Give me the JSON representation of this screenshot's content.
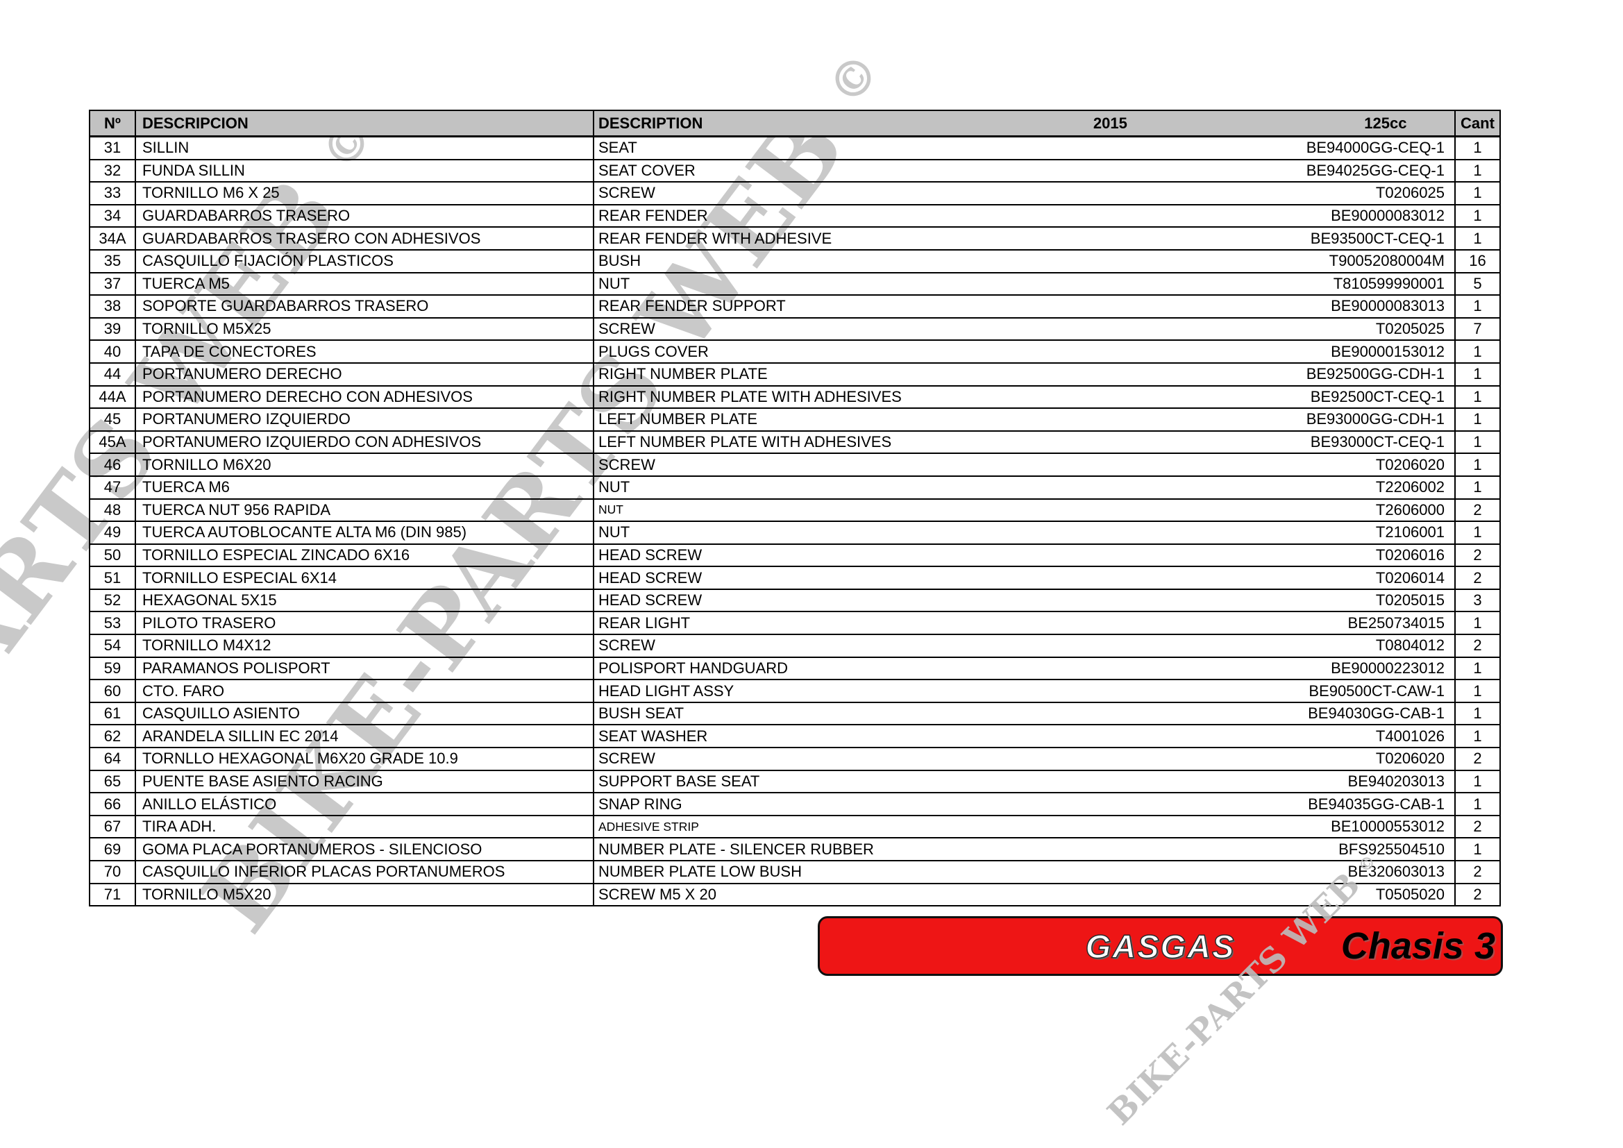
{
  "header": {
    "col_num": "Nº",
    "col_desc_es": "DESCRIPCION",
    "col_desc_en": "DESCRIPTION",
    "col_year": "2015",
    "col_model": "125cc",
    "col_qty": "Cant"
  },
  "rows": [
    {
      "num": "31",
      "desc_es": "SILLIN",
      "desc_en": "SEAT",
      "part": "BE94000GG-CEQ-1",
      "qty": "1"
    },
    {
      "num": "32",
      "desc_es": "FUNDA SILLIN",
      "desc_en": "SEAT COVER",
      "part": "BE94025GG-CEQ-1",
      "qty": "1"
    },
    {
      "num": "33",
      "desc_es": "TORNILLO M6 X 25",
      "desc_en": "SCREW",
      "part": "T0206025",
      "qty": "1"
    },
    {
      "num": "34",
      "desc_es": "GUARDABARROS TRASERO",
      "desc_en": "REAR FENDER",
      "part": "BE90000083012",
      "qty": "1"
    },
    {
      "num": "34A",
      "desc_es": "GUARDABARROS TRASERO CON ADHESIVOS",
      "desc_en": "REAR FENDER WITH ADHESIVE",
      "part": "BE93500CT-CEQ-1",
      "qty": "1"
    },
    {
      "num": "35",
      "desc_es": "CASQUILLO FIJACIÓN PLASTICOS",
      "desc_en": "BUSH",
      "part": "T90052080004M",
      "qty": "16"
    },
    {
      "num": "37",
      "desc_es": "TUERCA M5",
      "desc_en": "NUT",
      "part": "T810599990001",
      "qty": "5"
    },
    {
      "num": "38",
      "desc_es": "SOPORTE GUARDABARROS TRASERO",
      "desc_en": "REAR FENDER SUPPORT",
      "part": "BE90000083013",
      "qty": "1"
    },
    {
      "num": "39",
      "desc_es": "TORNILLO M5X25",
      "desc_en": "SCREW",
      "part": "T0205025",
      "qty": "7"
    },
    {
      "num": "40",
      "desc_es": "TAPA DE CONECTORES",
      "desc_en": "PLUGS COVER",
      "part": "BE90000153012",
      "qty": "1"
    },
    {
      "num": "44",
      "desc_es": "PORTANUMERO DERECHO",
      "desc_en": "RIGHT NUMBER PLATE",
      "part": "BE92500GG-CDH-1",
      "qty": "1"
    },
    {
      "num": "44A",
      "desc_es": "PORTANUMERO DERECHO CON ADHESIVOS",
      "desc_en": "RIGHT NUMBER PLATE WITH ADHESIVES",
      "part": "BE92500CT-CEQ-1",
      "qty": "1"
    },
    {
      "num": "45",
      "desc_es": "PORTANUMERO IZQUIERDO",
      "desc_en": "LEFT NUMBER PLATE",
      "part": "BE93000GG-CDH-1",
      "qty": "1"
    },
    {
      "num": "45A",
      "desc_es": "PORTANUMERO IZQUIERDO CON ADHESIVOS",
      "desc_en": "LEFT NUMBER PLATE WITH ADHESIVES",
      "part": "BE93000CT-CEQ-1",
      "qty": "1"
    },
    {
      "num": "46",
      "desc_es": "TORNILLO M6X20",
      "desc_en": "SCREW",
      "part": "T0206020",
      "qty": "1"
    },
    {
      "num": "47",
      "desc_es": "TUERCA M6",
      "desc_en": "NUT",
      "part": "T2206002",
      "qty": "1"
    },
    {
      "num": "48",
      "desc_es": "TUERCA NUT 956 RAPIDA",
      "desc_en": "NUT",
      "en_small": true,
      "part": "T2606000",
      "qty": "2"
    },
    {
      "num": "49",
      "desc_es": "TUERCA AUTOBLOCANTE ALTA M6 (DIN 985)",
      "desc_en": "NUT",
      "part": "T2106001",
      "qty": "1"
    },
    {
      "num": "50",
      "desc_es": "TORNILLO ESPECIAL ZINCADO 6X16",
      "desc_en": "HEAD SCREW",
      "part": "T0206016",
      "qty": "2"
    },
    {
      "num": "51",
      "desc_es": "TORNILLO ESPECIAL 6X14",
      "desc_en": "HEAD SCREW",
      "part": "T0206014",
      "qty": "2"
    },
    {
      "num": "52",
      "desc_es": "HEXAGONAL 5X15",
      "desc_en": "HEAD SCREW",
      "part": "T0205015",
      "qty": "3"
    },
    {
      "num": "53",
      "desc_es": "PILOTO TRASERO",
      "desc_en": "REAR LIGHT",
      "part": "BE250734015",
      "qty": "1"
    },
    {
      "num": "54",
      "desc_es": "TORNILLO M4X12",
      "desc_en": "SCREW",
      "part": "T0804012",
      "qty": "2"
    },
    {
      "num": "59",
      "desc_es": "PARAMANOS POLISPORT",
      "desc_en": "POLISPORT HANDGUARD",
      "part": "BE90000223012",
      "qty": "1"
    },
    {
      "num": "60",
      "desc_es": "CTO. FARO",
      "desc_en": "HEAD LIGHT ASSY",
      "part": "BE90500CT-CAW-1",
      "qty": "1"
    },
    {
      "num": "61",
      "desc_es": "CASQUILLO ASIENTO",
      "desc_en": "BUSH SEAT",
      "part": "BE94030GG-CAB-1",
      "qty": "1"
    },
    {
      "num": "62",
      "desc_es": "ARANDELA SILLIN EC 2014",
      "desc_en": "SEAT WASHER",
      "part": "T4001026",
      "qty": "1"
    },
    {
      "num": "64",
      "desc_es": "TORNLLO HEXAGONAL M6X20 GRADE 10.9",
      "desc_en": "SCREW",
      "part": "T0206020",
      "qty": "2"
    },
    {
      "num": "65",
      "desc_es": "PUENTE BASE ASIENTO RACING",
      "desc_en": "SUPPORT BASE SEAT",
      "part": "BE940203013",
      "qty": "1"
    },
    {
      "num": "66",
      "desc_es": "ANILLO ELÁSTICO",
      "desc_en": "SNAP RING",
      "part": "BE94035GG-CAB-1",
      "qty": "1"
    },
    {
      "num": "67",
      "desc_es": "TIRA ADH.",
      "desc_en": "ADHESIVE STRIP",
      "en_small": true,
      "part": "BE10000553012",
      "qty": "2"
    },
    {
      "num": "69",
      "desc_es": "GOMA PLACA PORTANUMEROS - SILENCIOSO",
      "desc_en": "NUMBER PLATE - SILENCER RUBBER",
      "part": "BFS925504510",
      "qty": "1"
    },
    {
      "num": "70",
      "desc_es": "CASQUILLO INFERIOR PLACAS PORTANUMEROS",
      "desc_en": "NUMBER PLATE LOW BUSH",
      "part": "BE320603013",
      "qty": "2"
    },
    {
      "num": "71",
      "desc_es": "TORNILLO M5X20",
      "desc_en": "SCREW M5 X 20",
      "part": "T0505020",
      "qty": "2"
    }
  ],
  "watermark": {
    "text": "BIKE-PARTS WEB",
    "copyright": "©"
  },
  "banner": {
    "brand": "GASGAS",
    "label": "Chasis 3",
    "red": "#ee1515"
  }
}
